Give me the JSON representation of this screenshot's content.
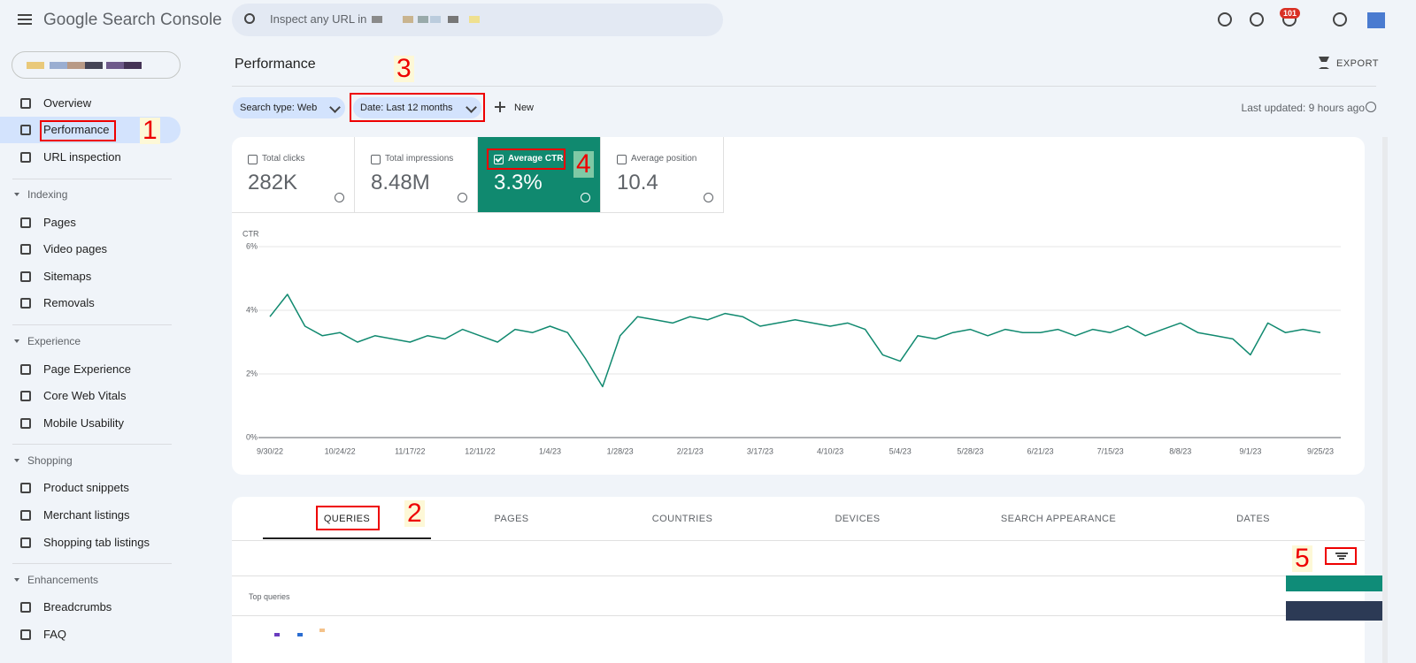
{
  "header": {
    "product": "Google Search Console",
    "search_placeholder": "Inspect any URL in",
    "notifications": "101"
  },
  "nav": {
    "top": [
      "Overview",
      "Performance",
      "URL inspection"
    ],
    "sections": [
      {
        "title": "Indexing",
        "items": [
          "Pages",
          "Video pages",
          "Sitemaps",
          "Removals"
        ]
      },
      {
        "title": "Experience",
        "items": [
          "Page Experience",
          "Core Web Vitals",
          "Mobile Usability"
        ]
      },
      {
        "title": "Shopping",
        "items": [
          "Product snippets",
          "Merchant listings",
          "Shopping tab listings"
        ]
      },
      {
        "title": "Enhancements",
        "items": [
          "Breadcrumbs",
          "FAQ"
        ]
      }
    ]
  },
  "page": {
    "title": "Performance",
    "export": "EXPORT",
    "filters": [
      "Search type: Web",
      "Date: Last 12 months"
    ],
    "new": "New",
    "last_updated": "Last updated: 9 hours ago"
  },
  "metrics": [
    {
      "label": "Total clicks",
      "value": "282K"
    },
    {
      "label": "Total impressions",
      "value": "8.48M"
    },
    {
      "label": "Average CTR",
      "value": "3.3%",
      "selected": true
    },
    {
      "label": "Average position",
      "value": "10.4"
    }
  ],
  "chart_data": {
    "type": "line",
    "y_label": "CTR",
    "color": "#10896f",
    "grid": true,
    "x": [
      "9/30/22",
      "10/6/22",
      "10/12/22",
      "10/18/22",
      "10/24/22",
      "10/30/22",
      "11/5/22",
      "11/11/22",
      "11/17/22",
      "11/23/22",
      "11/29/22",
      "12/5/22",
      "12/11/22",
      "12/17/22",
      "12/23/22",
      "12/29/22",
      "1/4/23",
      "1/10/23",
      "1/16/23",
      "1/22/23",
      "1/28/23",
      "2/3/23",
      "2/9/23",
      "2/15/23",
      "2/21/23",
      "2/27/23",
      "3/5/23",
      "3/11/23",
      "3/17/23",
      "3/23/23",
      "3/29/23",
      "4/4/23",
      "4/10/23",
      "4/16/23",
      "4/22/23",
      "4/28/23",
      "5/4/23",
      "5/10/23",
      "5/16/23",
      "5/22/23",
      "5/28/23",
      "6/3/23",
      "6/9/23",
      "6/15/23",
      "6/21/23",
      "6/27/23",
      "7/3/23",
      "7/9/23",
      "7/15/23",
      "7/21/23",
      "7/27/23",
      "8/2/23",
      "8/8/23",
      "8/14/23",
      "8/20/23",
      "8/26/23",
      "9/1/23",
      "9/7/23",
      "9/13/23",
      "9/19/23",
      "9/25/23"
    ],
    "values": [
      3.8,
      4.5,
      3.5,
      3.2,
      3.3,
      3.0,
      3.2,
      3.1,
      3.0,
      3.2,
      3.1,
      3.4,
      3.2,
      3.0,
      3.4,
      3.3,
      3.5,
      3.3,
      2.5,
      1.6,
      3.2,
      3.8,
      3.7,
      3.6,
      3.8,
      3.7,
      3.9,
      3.8,
      3.5,
      3.6,
      3.7,
      3.6,
      3.5,
      3.6,
      3.4,
      2.6,
      2.4,
      3.2,
      3.1,
      3.3,
      3.4,
      3.2,
      3.4,
      3.3,
      3.3,
      3.4,
      3.2,
      3.4,
      3.3,
      3.5,
      3.2,
      3.4,
      3.6,
      3.3,
      3.2,
      3.1,
      2.6,
      3.6,
      3.3,
      3.4,
      3.3
    ],
    "xlim": [
      "9/30/22",
      "9/25/23"
    ],
    "xticks": [
      "9/30/22",
      "10/24/22",
      "11/17/22",
      "12/11/22",
      "1/4/23",
      "1/28/23",
      "2/21/23",
      "3/17/23",
      "4/10/23",
      "5/4/23",
      "5/28/23",
      "6/21/23",
      "7/15/23",
      "8/8/23",
      "9/1/23",
      "9/25/23"
    ],
    "ylim": [
      0,
      6
    ],
    "yticks": [
      {
        "value": 0,
        "label": "0%"
      },
      {
        "value": 2,
        "label": "2%"
      },
      {
        "value": 4,
        "label": "4%"
      },
      {
        "value": 6,
        "label": "6%"
      }
    ]
  },
  "table": {
    "tabs": [
      "QUERIES",
      "PAGES",
      "COUNTRIES",
      "DEVICES",
      "SEARCH APPEARANCE",
      "DATES"
    ],
    "heading": "Top queries"
  },
  "annotations": [
    "1",
    "2",
    "3",
    "4",
    "5"
  ]
}
